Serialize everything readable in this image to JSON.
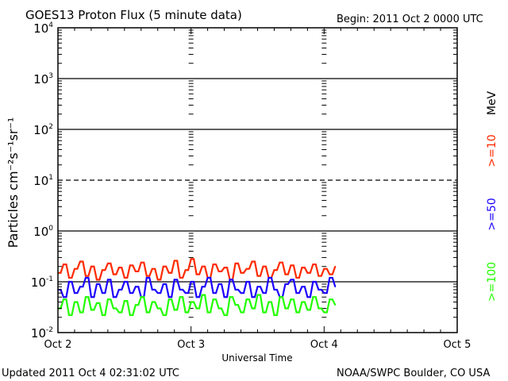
{
  "chart_data": {
    "type": "line",
    "title": "GOES13 Proton Flux (5 minute data)",
    "begin_label": "Begin: 2011 Oct 2 0000 UTC",
    "xlabel": "Universal Time",
    "ylabel": "Particles cm⁻²s⁻¹sr⁻¹",
    "yscale": "log",
    "ylim": [
      0.01,
      10000
    ],
    "xlim_hours": [
      0,
      72
    ],
    "y_ticks": [
      {
        "v": 0.01,
        "base": "10",
        "exp": "-2"
      },
      {
        "v": 0.1,
        "base": "10",
        "exp": "-1"
      },
      {
        "v": 1,
        "base": "10",
        "exp": "0"
      },
      {
        "v": 10,
        "base": "10",
        "exp": "1"
      },
      {
        "v": 100,
        "base": "10",
        "exp": "2"
      },
      {
        "v": 1000,
        "base": "10",
        "exp": "3"
      },
      {
        "v": 10000,
        "base": "10",
        "exp": "4"
      }
    ],
    "x_ticks": [
      {
        "h": 0,
        "label": "Oct 2"
      },
      {
        "h": 24,
        "label": "Oct 3"
      },
      {
        "h": 48,
        "label": "Oct 4"
      },
      {
        "h": 72,
        "label": "Oct 5"
      }
    ],
    "dashed_gridline": 10,
    "units_label": "MeV",
    "x_hours": [
      0,
      1,
      2,
      3,
      4,
      5,
      6,
      7,
      8,
      9,
      10,
      11,
      12,
      13,
      14,
      15,
      16,
      17,
      18,
      19,
      20,
      21,
      22,
      23,
      24,
      25,
      26,
      27,
      28,
      29,
      30,
      31,
      32,
      33,
      34,
      35,
      36,
      37,
      38,
      39,
      40,
      41,
      42,
      43,
      44,
      45,
      46,
      47,
      48,
      49,
      50
    ],
    "series": [
      {
        "name": ">=10",
        "color": "#ff2a00",
        "values": [
          0.15,
          0.22,
          0.12,
          0.18,
          0.25,
          0.13,
          0.2,
          0.11,
          0.17,
          0.23,
          0.14,
          0.19,
          0.12,
          0.21,
          0.16,
          0.24,
          0.13,
          0.18,
          0.11,
          0.2,
          0.15,
          0.26,
          0.12,
          0.17,
          0.28,
          0.14,
          0.2,
          0.12,
          0.22,
          0.16,
          0.19,
          0.11,
          0.23,
          0.15,
          0.18,
          0.25,
          0.13,
          0.2,
          0.12,
          0.17,
          0.24,
          0.14,
          0.21,
          0.12,
          0.19,
          0.15,
          0.22,
          0.13,
          0.18,
          0.14,
          0.2
        ]
      },
      {
        "name": ">=50",
        "color": "#1a00ff",
        "values": [
          0.07,
          0.05,
          0.1,
          0.06,
          0.08,
          0.12,
          0.05,
          0.09,
          0.06,
          0.11,
          0.05,
          0.07,
          0.1,
          0.06,
          0.08,
          0.05,
          0.12,
          0.07,
          0.06,
          0.09,
          0.05,
          0.11,
          0.07,
          0.06,
          0.1,
          0.05,
          0.08,
          0.12,
          0.06,
          0.09,
          0.05,
          0.11,
          0.07,
          0.06,
          0.1,
          0.05,
          0.08,
          0.06,
          0.12,
          0.07,
          0.05,
          0.09,
          0.11,
          0.06,
          0.08,
          0.05,
          0.1,
          0.07,
          0.06,
          0.12,
          0.08
        ]
      },
      {
        "name": ">=100",
        "color": "#22ff00",
        "values": [
          0.03,
          0.045,
          0.022,
          0.04,
          0.025,
          0.05,
          0.028,
          0.038,
          0.022,
          0.045,
          0.03,
          0.025,
          0.042,
          0.022,
          0.035,
          0.05,
          0.025,
          0.04,
          0.03,
          0.022,
          0.045,
          0.028,
          0.05,
          0.025,
          0.04,
          0.03,
          0.055,
          0.025,
          0.045,
          0.03,
          0.022,
          0.05,
          0.035,
          0.025,
          0.045,
          0.03,
          0.055,
          0.025,
          0.04,
          0.022,
          0.05,
          0.03,
          0.045,
          0.025,
          0.04,
          0.028,
          0.05,
          0.03,
          0.025,
          0.045,
          0.035
        ]
      }
    ]
  },
  "footer": {
    "updated": "Updated 2011 Oct  4 02:31:02 UTC",
    "credit": "NOAA/SWPC Boulder, CO USA"
  }
}
